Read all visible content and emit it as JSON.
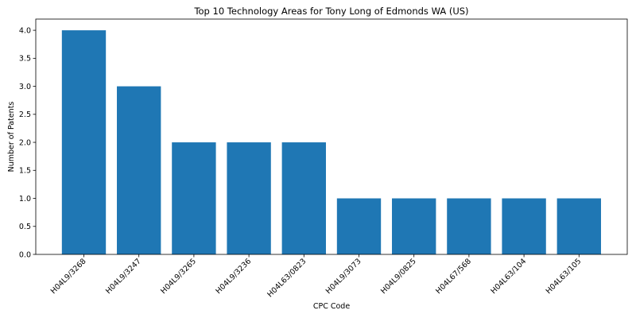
{
  "chart_data": {
    "type": "bar",
    "title": "Top 10 Technology Areas for Tony Long of Edmonds WA (US)",
    "xlabel": "CPC Code",
    "ylabel": "Number of Patents",
    "categories": [
      "H04L9/3268",
      "H04L9/3247",
      "H04L9/3265",
      "H04L9/3236",
      "H04L63/0823",
      "H04L9/3073",
      "H04L9/0825",
      "H04L67/568",
      "H04L63/104",
      "H04L63/105"
    ],
    "values": [
      4,
      3,
      2,
      2,
      2,
      1,
      1,
      1,
      1,
      1
    ],
    "ylim": [
      0,
      4.2
    ],
    "yticks": [
      0.0,
      0.5,
      1.0,
      1.5,
      2.0,
      2.5,
      3.0,
      3.5,
      4.0
    ],
    "ytick_labels": [
      "0.0",
      "0.5",
      "1.0",
      "1.5",
      "2.0",
      "2.5",
      "3.0",
      "3.5",
      "4.0"
    ],
    "grid": false,
    "bar_color": "#1f77b4"
  }
}
